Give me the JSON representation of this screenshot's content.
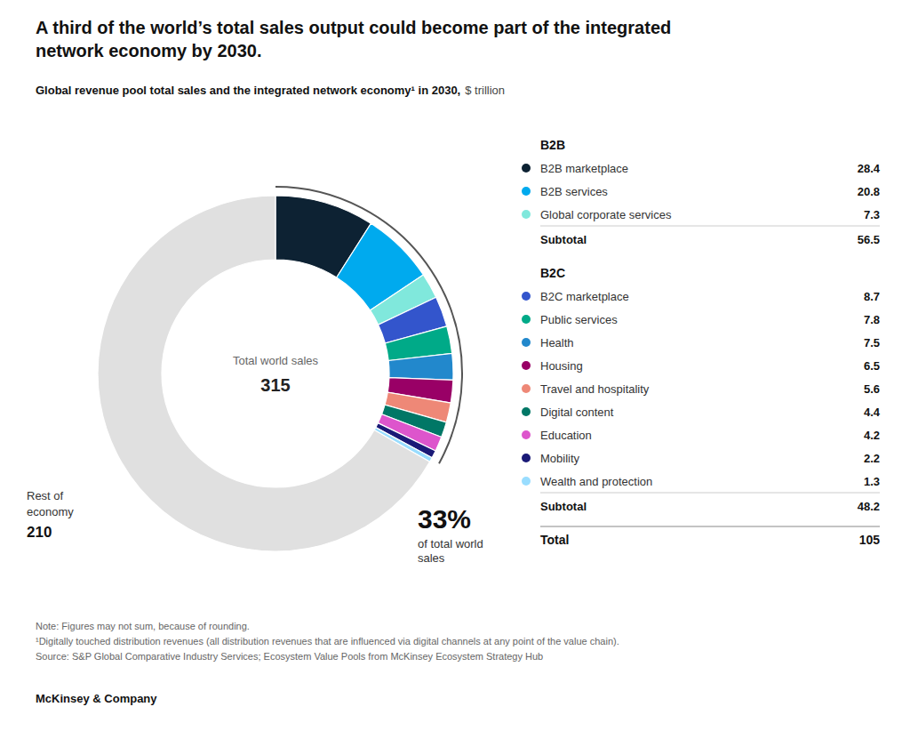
{
  "chart_data": {
    "type": "donut",
    "title": "A third of the world’s total sales output could become part of the integrated\nnetwork economy by 2030.",
    "subtitle": "Global revenue pool total sales and the integrated network economy¹ in 2030,",
    "unit": "$ trillion",
    "categories": [
      "B2B marketplace",
      "B2B services",
      "Global corporate services",
      "B2C marketplace",
      "Public services",
      "Health",
      "Housing",
      "Travel and hospitality",
      "Digital content",
      "Education",
      "Mobility",
      "Wealth and protection",
      "Rest of\neconomy"
    ],
    "values": [
      28.4,
      20.8,
      7.3,
      8.7,
      7.8,
      7.5,
      6.5,
      5.6,
      4.4,
      4.2,
      2.2,
      1.3,
      210
    ],
    "colors": [
      "#0d2233",
      "#00aaee",
      "#80e8dc",
      "#3355cc",
      "#00aa88",
      "#2288cc",
      "#990066",
      "#ee8877",
      "#007766",
      "#dd55cc",
      "#1a1a77",
      "#99ddff",
      "#e0e0e0"
    ],
    "group": [
      "B2B",
      "B2B",
      "B2B",
      "B2C",
      "B2C",
      "B2C",
      "B2C",
      "B2C",
      "B2C",
      "B2C",
      "B2C",
      "B2C",
      null
    ],
    "subtotal_label": "Subtotal",
    "subtotals": [
      56.5,
      48.2
    ],
    "total_label": "Total",
    "total": 105,
    "center_label": "Total world sales",
    "center_value": 315,
    "share": {
      "value": 33,
      "label": "33%",
      "text": "of total world\nsales"
    },
    "notes": [
      "Note: Figures may not sum, because of rounding.",
      "¹Digitally touched distribution revenues (all distribution revenues that are influenced via digital channels at any point of the value chain).",
      "Source: S&P Global Comparative Industry Services; Ecosystem Value Pools from McKinsey Ecosystem Strategy Hub"
    ],
    "footer": "McKinsey & Company"
  }
}
